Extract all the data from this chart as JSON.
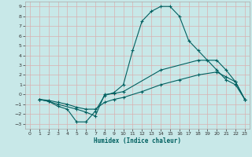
{
  "xlabel": "Humidex (Indice chaleur)",
  "bg_color": "#c8e8e8",
  "line_color": "#006060",
  "grid_color": "#d0e8e0",
  "xlim": [
    -0.5,
    23.5
  ],
  "ylim": [
    -3.5,
    9.5
  ],
  "xticks": [
    0,
    1,
    2,
    3,
    4,
    5,
    6,
    7,
    8,
    9,
    10,
    11,
    12,
    13,
    14,
    15,
    16,
    17,
    18,
    19,
    20,
    21,
    22,
    23
  ],
  "yticks": [
    -3,
    -2,
    -1,
    0,
    1,
    2,
    3,
    4,
    5,
    6,
    7,
    8,
    9
  ],
  "lines": [
    {
      "x": [
        1,
        2,
        3,
        4,
        5,
        6,
        7,
        8,
        9,
        10,
        11,
        12,
        13,
        14,
        15,
        16,
        17,
        18,
        19,
        20,
        21,
        22,
        23
      ],
      "y": [
        -0.5,
        -0.7,
        -1.2,
        -1.5,
        -2.8,
        -2.8,
        -1.7,
        -0.1,
        0.2,
        1.0,
        4.5,
        7.5,
        8.5,
        9.0,
        9.0,
        8.0,
        5.5,
        4.5,
        3.5,
        2.5,
        1.5,
        1.0,
        -0.5
      ]
    },
    {
      "x": [
        1,
        2,
        3,
        5,
        6,
        7,
        8,
        9,
        10,
        14,
        18,
        20,
        21,
        22,
        23
      ],
      "y": [
        -0.5,
        -0.7,
        -1.0,
        -1.5,
        -1.8,
        -2.2,
        -0.0,
        0.1,
        0.3,
        2.5,
        3.5,
        3.5,
        2.5,
        1.3,
        -0.5
      ]
    },
    {
      "x": [
        1,
        2,
        3,
        4,
        5,
        6,
        7,
        8,
        9,
        10,
        12,
        14,
        16,
        18,
        20,
        21,
        22,
        23
      ],
      "y": [
        -0.5,
        -0.6,
        -0.8,
        -1.0,
        -1.3,
        -1.5,
        -1.5,
        -0.8,
        -0.5,
        -0.3,
        0.3,
        1.0,
        1.5,
        2.0,
        2.3,
        1.8,
        1.3,
        -0.5
      ]
    }
  ]
}
